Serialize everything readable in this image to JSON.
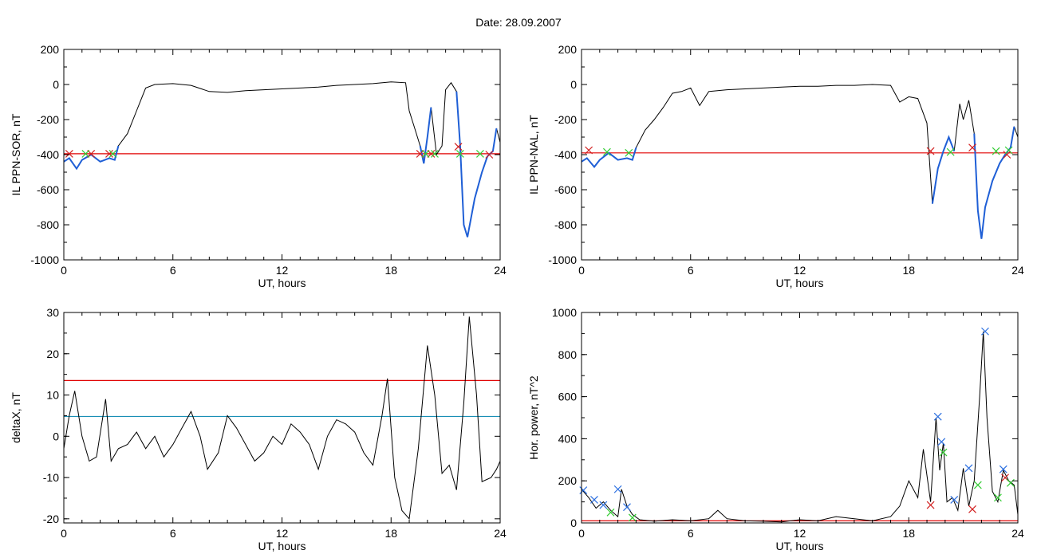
{
  "title": "Date:  28.09.2007",
  "colors": {
    "trace": "#000000",
    "threshold_red": "#e00000",
    "threshold_blue": "#1a8fb5",
    "highlight_blue": "#1f5fd6",
    "marker_red": "#d21f1f",
    "marker_green": "#33cc33",
    "marker_blue": "#2b6fe0"
  },
  "chart_data": [
    {
      "type": "line",
      "ylabel": "IL PPN-SOR, nT",
      "xlabel": "UT, hours",
      "xlim": [
        0,
        24
      ],
      "ylim": [
        -1000,
        200
      ],
      "xticks": [
        "0",
        "6",
        "12",
        "18",
        "24"
      ],
      "yticks": [
        "200",
        "0",
        "-200",
        "-400",
        "-600",
        "-800",
        "-1000"
      ],
      "ytick_values": [
        200,
        0,
        -200,
        -400,
        -600,
        -800,
        -1000
      ],
      "threshold_red": -395,
      "series": [
        {
          "x": [
            0,
            0.3,
            0.7,
            1.0,
            1.5,
            2.0,
            2.5,
            2.8,
            3.0,
            3.5,
            4.0,
            4.5,
            5.0,
            6.0,
            7.0,
            8.0,
            9.0,
            10.0,
            11.0,
            12.0,
            13.0,
            14.0,
            15.0,
            16.0,
            17.0,
            18.0,
            18.8,
            19.0,
            19.3,
            19.6,
            19.8,
            20.0,
            20.2,
            20.5,
            20.8,
            21.0,
            21.3,
            21.6,
            21.8,
            22.0,
            22.2,
            22.6,
            23.0,
            23.3,
            23.6,
            23.8,
            24.0
          ],
          "y": [
            -440,
            -420,
            -480,
            -430,
            -400,
            -440,
            -420,
            -430,
            -350,
            -280,
            -150,
            -20,
            0,
            5,
            -5,
            -40,
            -45,
            -35,
            -30,
            -25,
            -20,
            -15,
            -5,
            0,
            5,
            15,
            10,
            -150,
            -250,
            -350,
            -450,
            -300,
            -130,
            -400,
            -350,
            -30,
            10,
            -40,
            -350,
            -800,
            -870,
            -650,
            -500,
            -410,
            -380,
            -250,
            -330
          ]
        }
      ],
      "highlight_ranges": [
        [
          0,
          3
        ],
        [
          19.5,
          20.4
        ],
        [
          21.5,
          23.8
        ]
      ],
      "markers_red": [
        [
          0.3,
          -395
        ],
        [
          1.5,
          -395
        ],
        [
          2.5,
          -395
        ],
        [
          19.6,
          -395
        ],
        [
          20.2,
          -395
        ],
        [
          21.7,
          -355
        ],
        [
          23.4,
          -400
        ]
      ],
      "markers_green": [
        [
          1.2,
          -395
        ],
        [
          2.7,
          -395
        ],
        [
          19.9,
          -395
        ],
        [
          20.4,
          -395
        ],
        [
          21.8,
          -395
        ],
        [
          22.9,
          -395
        ]
      ]
    },
    {
      "type": "line",
      "ylabel": "IL PPN-NAL, nT",
      "xlabel": "UT, hours",
      "xlim": [
        0,
        24
      ],
      "ylim": [
        -1000,
        200
      ],
      "xticks": [
        "0",
        "6",
        "12",
        "18",
        "24"
      ],
      "yticks": [
        "200",
        "0",
        "-200",
        "-400",
        "-600",
        "-800",
        "-1000"
      ],
      "ytick_values": [
        200,
        0,
        -200,
        -400,
        -600,
        -800,
        -1000
      ],
      "threshold_red": -390,
      "series": [
        {
          "x": [
            0,
            0.3,
            0.7,
            1.0,
            1.5,
            2.0,
            2.5,
            2.8,
            3.0,
            3.5,
            4.0,
            4.5,
            5.0,
            5.5,
            6.0,
            6.5,
            7.0,
            8.0,
            9.0,
            10.0,
            11.0,
            12.0,
            13.0,
            14.0,
            15.0,
            16.0,
            17.0,
            17.5,
            18.0,
            18.5,
            19.0,
            19.3,
            19.6,
            19.9,
            20.2,
            20.5,
            20.8,
            21.0,
            21.3,
            21.6,
            21.8,
            22.0,
            22.2,
            22.6,
            23.0,
            23.3,
            23.6,
            23.8,
            24.0
          ],
          "y": [
            -440,
            -420,
            -470,
            -430,
            -390,
            -430,
            -420,
            -430,
            -360,
            -260,
            -200,
            -130,
            -50,
            -40,
            -20,
            -120,
            -40,
            -30,
            -25,
            -20,
            -15,
            -10,
            -10,
            -5,
            -5,
            0,
            -5,
            -100,
            -70,
            -80,
            -220,
            -680,
            -480,
            -380,
            -300,
            -380,
            -110,
            -200,
            -90,
            -280,
            -720,
            -880,
            -700,
            -550,
            -450,
            -400,
            -360,
            -240,
            -300
          ]
        }
      ],
      "highlight_ranges": [
        [
          0,
          3
        ],
        [
          19.2,
          20.6
        ],
        [
          21.6,
          23.8
        ]
      ],
      "markers_red": [
        [
          0.4,
          -375
        ],
        [
          19.2,
          -380
        ],
        [
          21.5,
          -360
        ],
        [
          23.4,
          -400
        ]
      ],
      "markers_green": [
        [
          1.4,
          -385
        ],
        [
          2.6,
          -390
        ],
        [
          20.3,
          -385
        ],
        [
          22.8,
          -380
        ],
        [
          23.5,
          -375
        ]
      ]
    },
    {
      "type": "line",
      "ylabel": "deltaX, nT",
      "xlabel": "UT, hours",
      "xlim": [
        0,
        24
      ],
      "ylim": [
        -21,
        30
      ],
      "xticks": [
        "0",
        "6",
        "12",
        "18",
        "24"
      ],
      "yticks": [
        "30",
        "20",
        "10",
        "0",
        "-10",
        "-20"
      ],
      "ytick_values": [
        30,
        20,
        10,
        0,
        -10,
        -20
      ],
      "threshold_red": 13.5,
      "threshold_blue": 4.8,
      "series": [
        {
          "x": [
            0,
            0.3,
            0.6,
            1.0,
            1.4,
            1.8,
            2.3,
            2.6,
            3.0,
            3.5,
            4.0,
            4.5,
            5.0,
            5.5,
            6.0,
            6.5,
            7.0,
            7.5,
            7.9,
            8.5,
            9.0,
            9.5,
            10.0,
            10.5,
            11.0,
            11.5,
            12.0,
            12.5,
            13.0,
            13.5,
            14.0,
            14.5,
            15.0,
            15.5,
            16.0,
            16.5,
            17.0,
            17.5,
            17.8,
            18.2,
            18.6,
            19.0,
            19.5,
            20.0,
            20.4,
            20.8,
            21.2,
            21.6,
            22.0,
            22.3,
            22.7,
            23.0,
            23.5,
            23.8,
            24.0
          ],
          "y": [
            -3,
            5,
            11,
            0,
            -6,
            -5,
            9,
            -6,
            -3,
            -2,
            1,
            -3,
            0,
            -5,
            -2,
            2,
            6,
            0,
            -8,
            -4,
            5,
            2,
            -2,
            -6,
            -4,
            0,
            -2,
            3,
            1,
            -2,
            -8,
            0,
            4,
            3,
            1,
            -4,
            -7,
            5,
            14,
            -10,
            -18,
            -20,
            -3,
            22,
            10,
            -9,
            -7,
            -13,
            8,
            29,
            10,
            -11,
            -10,
            -8,
            -6
          ]
        }
      ]
    },
    {
      "type": "line",
      "ylabel": "Hor. power, nT^2",
      "xlabel": "UT, hours",
      "xlim": [
        0,
        24
      ],
      "ylim": [
        0,
        1000
      ],
      "xticks": [
        "0",
        "6",
        "12",
        "18",
        "24"
      ],
      "yticks": [
        "1000",
        "800",
        "600",
        "400",
        "200",
        "0"
      ],
      "ytick_values": [
        1000,
        800,
        600,
        400,
        200,
        0
      ],
      "threshold_red": 10,
      "series": [
        {
          "x": [
            0,
            0.4,
            0.8,
            1.2,
            1.6,
            2.0,
            2.2,
            2.5,
            2.8,
            3.2,
            4.0,
            5.0,
            6.0,
            7.0,
            7.5,
            8.0,
            9.0,
            10.0,
            11.0,
            12.0,
            13.0,
            14.0,
            15.0,
            16.0,
            17.0,
            17.5,
            18.0,
            18.5,
            18.8,
            19.2,
            19.5,
            19.7,
            19.9,
            20.1,
            20.4,
            20.7,
            21.0,
            21.3,
            21.6,
            21.9,
            22.1,
            22.3,
            22.6,
            22.9,
            23.2,
            23.5,
            23.8,
            24.0
          ],
          "y": [
            160,
            120,
            70,
            100,
            60,
            30,
            160,
            80,
            40,
            15,
            8,
            15,
            10,
            20,
            60,
            20,
            10,
            8,
            5,
            15,
            10,
            30,
            20,
            10,
            30,
            80,
            200,
            120,
            350,
            100,
            500,
            250,
            380,
            100,
            120,
            60,
            260,
            80,
            200,
            600,
            910,
            500,
            150,
            100,
            250,
            200,
            180,
            40
          ]
        }
      ],
      "markers_blue": [
        [
          0.1,
          155
        ],
        [
          0.7,
          110
        ],
        [
          1.2,
          85
        ],
        [
          2.0,
          160
        ],
        [
          2.5,
          75
        ],
        [
          19.6,
          505
        ],
        [
          19.8,
          385
        ],
        [
          20.5,
          110
        ],
        [
          21.3,
          260
        ],
        [
          22.2,
          910
        ],
        [
          23.2,
          255
        ]
      ],
      "markers_red": [
        [
          19.2,
          85
        ],
        [
          21.5,
          65
        ],
        [
          23.3,
          215
        ]
      ],
      "markers_green": [
        [
          1.6,
          50
        ],
        [
          2.8,
          25
        ],
        [
          19.9,
          335
        ],
        [
          21.8,
          180
        ],
        [
          22.9,
          120
        ],
        [
          23.6,
          190
        ]
      ]
    }
  ]
}
